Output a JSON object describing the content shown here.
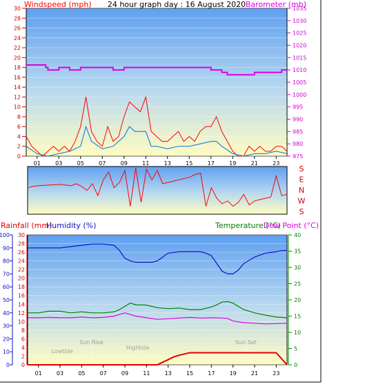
{
  "title": "24 hour graph day : 16 August 2020",
  "colors": {
    "wind": "#ff0000",
    "gust_avg": "#0070e0",
    "baro": "#e000e0",
    "humidity": "#1010c0",
    "temperature": "#008000",
    "dewpoint": "#e000e0",
    "rain": "#e00000",
    "sky_top": "#5fa0f0",
    "sky_bottom": "#fffcc0"
  },
  "hour_labels": [
    "01",
    "03",
    "05",
    "07",
    "09",
    "11",
    "13",
    "15",
    "17",
    "19",
    "21",
    "23"
  ],
  "chart_data": [
    {
      "type": "line",
      "name": "wind-baro",
      "left_axis_label": "Windspeed (mph)",
      "right_axis_label": "Barometer (mb)",
      "left_ticks": [
        0,
        2,
        4,
        6,
        8,
        10,
        12,
        14,
        16,
        18,
        20,
        22,
        24,
        26,
        28,
        30
      ],
      "right_ticks": [
        975,
        980,
        985,
        990,
        995,
        1000,
        1005,
        1010,
        1015,
        1020,
        1025,
        1030,
        1035
      ],
      "ylim_left": [
        0,
        30
      ],
      "ylim_right": [
        975,
        1035
      ],
      "xlim": [
        0,
        24
      ],
      "series": [
        {
          "axis": "left",
          "key": "wind_gust",
          "x": [
            0,
            0.5,
            1,
            1.5,
            2,
            2.5,
            3,
            3.5,
            4,
            4.5,
            5,
            5.5,
            6,
            6.5,
            7,
            7.5,
            8,
            8.5,
            9,
            9.5,
            10,
            10.5,
            11,
            11.5,
            12,
            12.5,
            13,
            13.5,
            14,
            14.5,
            15,
            15.5,
            16,
            16.5,
            17,
            17.5,
            18,
            18.5,
            19,
            19.5,
            20,
            20.5,
            21,
            21.5,
            22,
            22.5,
            23,
            23.5,
            24
          ],
          "y": [
            4,
            2,
            1,
            0,
            1,
            2,
            1,
            2,
            1,
            3,
            6,
            12,
            5,
            3,
            2,
            6,
            3,
            4,
            8,
            11,
            10,
            9,
            12,
            5,
            4,
            3,
            3,
            4,
            5,
            3,
            4,
            3,
            5,
            6,
            6,
            8,
            5,
            3,
            1,
            0,
            0,
            2,
            1,
            2,
            1,
            1,
            2,
            2,
            1
          ]
        },
        {
          "axis": "left",
          "key": "wind_avg",
          "x": [
            0,
            1,
            2,
            3,
            4,
            5,
            5.5,
            6,
            7,
            8,
            9,
            9.5,
            10,
            10.5,
            11,
            11.5,
            12,
            13,
            14,
            15,
            16,
            17,
            17.5,
            18,
            19,
            20,
            21,
            22,
            23,
            24
          ],
          "y": [
            2,
            0.5,
            0,
            0.5,
            1,
            2,
            6,
            3,
            1.5,
            2,
            4,
            6,
            5,
            5,
            5,
            2,
            2,
            1.5,
            2,
            2,
            2.5,
            3,
            3,
            2,
            0.5,
            0,
            0.5,
            0.5,
            1,
            0.5
          ]
        },
        {
          "axis": "right",
          "key": "barometer",
          "x": [
            0,
            1,
            1.8,
            2,
            3,
            4,
            5,
            6,
            7,
            8,
            9,
            10,
            11,
            12,
            13,
            14,
            15,
            16,
            17,
            18,
            18.5,
            19,
            20,
            21,
            22,
            23,
            23.5,
            24
          ],
          "y": [
            1012,
            1012,
            1011,
            1010,
            1011,
            1010,
            1011,
            1011,
            1011,
            1010,
            1011,
            1011,
            1011,
            1011,
            1011,
            1011,
            1011,
            1011,
            1010,
            1009,
            1008,
            1008,
            1008,
            1009,
            1009,
            1009,
            1010,
            1010
          ]
        }
      ]
    },
    {
      "type": "line",
      "name": "wind-direction",
      "right_axis_ticks": [
        "S",
        "E",
        "N",
        "W",
        "S"
      ],
      "ylim": [
        0,
        360
      ],
      "xlim": [
        0,
        24
      ],
      "series": [
        {
          "key": "direction",
          "x": [
            0,
            0.5,
            1,
            2,
            3,
            4,
            4.5,
            5,
            5.5,
            6,
            6.5,
            7,
            7.5,
            8,
            8.5,
            9,
            9.5,
            10,
            10.5,
            11,
            11.5,
            12,
            12.5,
            13,
            13.5,
            14,
            14.5,
            15,
            15.5,
            16,
            16.5,
            17,
            17.5,
            18,
            18.5,
            19,
            19.5,
            20,
            20.5,
            21,
            21.5,
            22,
            22.5,
            23,
            23.5,
            24
          ],
          "y": [
            200,
            210,
            215,
            220,
            225,
            215,
            230,
            210,
            180,
            230,
            140,
            260,
            320,
            200,
            240,
            330,
            60,
            350,
            90,
            340,
            260,
            330,
            230,
            240,
            250,
            260,
            270,
            280,
            300,
            310,
            60,
            200,
            120,
            80,
            100,
            60,
            90,
            150,
            70,
            100,
            110,
            120,
            130,
            290,
            140,
            150
          ]
        }
      ]
    },
    {
      "type": "line",
      "name": "temp-hum-rain",
      "left_axis_label_1": "Rainfall (mm)",
      "left_axis_label_2": "Humidity (%)",
      "right_axis_label_1": "Temperature (°C)",
      "right_axis_label_2": "Dew Point (°C)",
      "humidity_ticks": [
        0,
        10,
        20,
        30,
        40,
        50,
        60,
        70,
        80,
        90,
        100
      ],
      "rain_ticks": [
        0,
        2,
        4,
        6,
        8,
        10,
        12,
        14,
        16,
        18,
        20,
        22,
        24,
        26,
        28,
        30
      ],
      "temp_ticks": [
        0,
        5,
        10,
        15,
        20,
        25,
        30,
        35,
        40
      ],
      "ylim_temp": [
        0,
        40
      ],
      "ylim_rain": [
        0,
        30
      ],
      "ylim_hum": [
        0,
        100
      ],
      "xlim": [
        0,
        24
      ],
      "annotations": [
        {
          "text": "Lowtide",
          "x": 3.2
        },
        {
          "text": "Sun Rise",
          "x": 5.9
        },
        {
          "text": "Hightide",
          "x": 10.2
        },
        {
          "text": "Sun Set",
          "x": 20.2
        }
      ],
      "series": [
        {
          "axis": "hum",
          "key": "humidity",
          "x": [
            0,
            1,
            2,
            3,
            4,
            5,
            6,
            7,
            8,
            8.5,
            9,
            9.5,
            10,
            11,
            11.5,
            12,
            12.5,
            13,
            14,
            15,
            16,
            16.5,
            17,
            17.5,
            18,
            18.5,
            19,
            19.5,
            20,
            21,
            22,
            23,
            23.5,
            24
          ],
          "y": [
            90,
            90,
            90,
            90,
            91,
            92,
            93,
            93,
            92,
            88,
            82,
            80,
            79,
            79,
            79,
            80,
            83,
            86,
            87,
            87,
            87,
            86,
            84,
            78,
            72,
            70,
            70,
            73,
            78,
            83,
            86,
            87,
            88,
            88
          ]
        },
        {
          "axis": "temp",
          "key": "temperature",
          "x": [
            0,
            1,
            2,
            3,
            4,
            5,
            6,
            7,
            8,
            8.5,
            9,
            9.5,
            10,
            11,
            12,
            13,
            14,
            15,
            16,
            17,
            17.5,
            18,
            18.5,
            19,
            20,
            21,
            22,
            23,
            24
          ],
          "y": [
            16,
            16,
            16.5,
            16.5,
            16,
            16.3,
            16,
            16,
            16.3,
            17,
            18,
            19,
            18.5,
            18.4,
            17.6,
            17.3,
            17.5,
            17,
            17,
            17.8,
            18.5,
            19.3,
            19.5,
            19,
            17,
            16,
            15.3,
            14.7,
            14.5
          ]
        },
        {
          "axis": "temp",
          "key": "dewpoint",
          "x": [
            0,
            1,
            2,
            3,
            4,
            5,
            6,
            7,
            8,
            8.5,
            9,
            9.5,
            10,
            11,
            12,
            13,
            14,
            15,
            16,
            17,
            18,
            18.5,
            19,
            20,
            21,
            22,
            23,
            24
          ],
          "y": [
            14.5,
            14.5,
            14.6,
            14.5,
            14.5,
            14.7,
            14.5,
            14.6,
            15,
            15.5,
            16,
            15.5,
            15,
            14.5,
            14,
            14.2,
            14.4,
            14.6,
            14.4,
            14.5,
            14.4,
            14.3,
            13.5,
            13,
            12.8,
            12.6,
            12.7,
            12.8
          ]
        },
        {
          "axis": "rain",
          "key": "rainfall",
          "x": [
            0,
            12,
            12.5,
            13,
            13.5,
            14,
            14.5,
            15,
            16,
            17,
            18,
            19,
            20,
            21,
            22,
            23,
            24
          ],
          "y": [
            0,
            0,
            0.6,
            1.2,
            1.8,
            2.2,
            2.5,
            2.8,
            2.8,
            2.8,
            2.8,
            2.8,
            2.8,
            2.8,
            2.8,
            2.8,
            0
          ]
        }
      ]
    }
  ]
}
